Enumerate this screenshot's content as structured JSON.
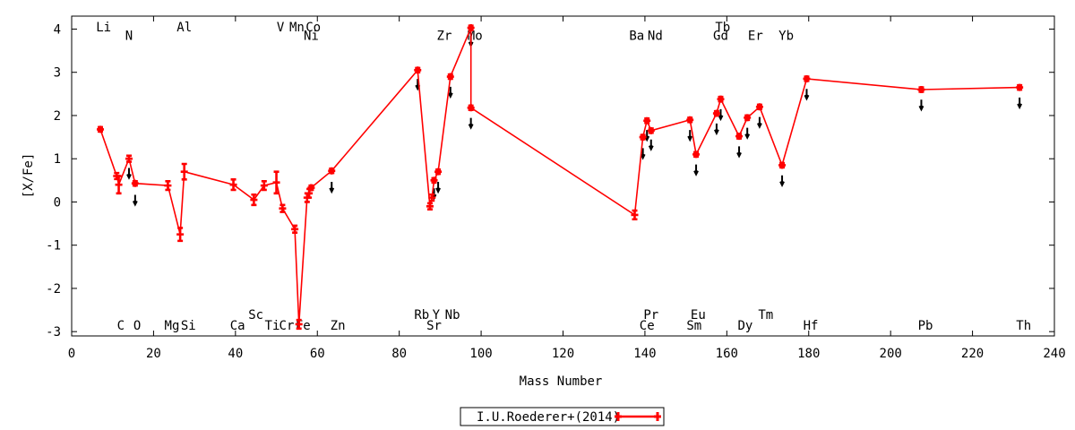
{
  "chart_data": {
    "type": "line",
    "xlabel": "Mass Number",
    "ylabel": "[X/Fe]",
    "xlim": [
      0,
      240
    ],
    "ylim": [
      -3.1,
      4.3
    ],
    "xticks": [
      0,
      20,
      40,
      60,
      80,
      100,
      120,
      140,
      160,
      180,
      200,
      220,
      240
    ],
    "yticks": [
      -3,
      -2,
      -1,
      0,
      1,
      2,
      3,
      4
    ],
    "grid": false,
    "legend_position": "bottom-center",
    "series": [
      {
        "name": "I.U.Roederer+(2014)",
        "color": "#ff0000",
        "points": [
          {
            "x": 7,
            "y": 1.68,
            "err": 0.05
          },
          {
            "x": 11,
            "y": 0.6,
            "err": 0.07
          },
          {
            "x": 11.5,
            "y": 0.4,
            "err": 0.2
          },
          {
            "x": 14,
            "y": 1.0,
            "err": 0.07
          },
          {
            "x": 15.5,
            "y": 0.43,
            "err": 0.05
          },
          {
            "x": 23.5,
            "y": 0.38,
            "err": 0.1
          },
          {
            "x": 26.5,
            "y": -0.75,
            "err": 0.15
          },
          {
            "x": 27.5,
            "y": 0.7,
            "err": 0.18
          },
          {
            "x": 39.5,
            "y": 0.4,
            "err": 0.12
          },
          {
            "x": 44.5,
            "y": 0.05,
            "err": 0.12
          },
          {
            "x": 47,
            "y": 0.38,
            "err": 0.1
          },
          {
            "x": 50,
            "y": 0.45,
            "err": 0.25
          },
          {
            "x": 51.5,
            "y": -0.15,
            "err": 0.08
          },
          {
            "x": 54.5,
            "y": -0.63,
            "err": 0.08
          },
          {
            "x": 55.5,
            "y": -2.83,
            "err": 0.1
          },
          {
            "x": 57.5,
            "y": 0.1,
            "err": 0.1
          },
          {
            "x": 58,
            "y": 0.2,
            "err": 0.1
          },
          {
            "x": 58.5,
            "y": 0.33,
            "err": 0.05
          },
          {
            "x": 63.5,
            "y": 0.72,
            "err": 0.05
          },
          {
            "x": 84.5,
            "y": 3.05,
            "err": 0.05
          },
          {
            "x": 87.5,
            "y": -0.1,
            "err": 0.07
          },
          {
            "x": 88,
            "y": 0.1,
            "err": 0.07
          },
          {
            "x": 88.5,
            "y": 0.5,
            "err": 0.05
          },
          {
            "x": 89.5,
            "y": 0.7,
            "err": 0.05
          },
          {
            "x": 92.5,
            "y": 2.9,
            "err": 0.05
          },
          {
            "x": 97.5,
            "y": 4.03,
            "err": 0.05
          },
          {
            "x": 97.5,
            "y": 2.18,
            "err": 0.05
          },
          {
            "x": 137.5,
            "y": -0.3,
            "err": 0.1
          },
          {
            "x": 139.5,
            "y": 1.5,
            "err": 0.05
          },
          {
            "x": 140.5,
            "y": 1.88,
            "err": 0.05
          },
          {
            "x": 141.5,
            "y": 1.65,
            "err": 0.05
          },
          {
            "x": 151,
            "y": 1.9,
            "err": 0.05
          },
          {
            "x": 152.5,
            "y": 1.1,
            "err": 0.05
          },
          {
            "x": 157.5,
            "y": 2.05,
            "err": 0.05
          },
          {
            "x": 158.5,
            "y": 2.38,
            "err": 0.05
          },
          {
            "x": 163,
            "y": 1.52,
            "err": 0.05
          },
          {
            "x": 165,
            "y": 1.95,
            "err": 0.05
          },
          {
            "x": 168,
            "y": 2.2,
            "err": 0.05
          },
          {
            "x": 173.5,
            "y": 0.85,
            "err": 0.05
          },
          {
            "x": 179.5,
            "y": 2.85,
            "err": 0.05
          },
          {
            "x": 207.5,
            "y": 2.6,
            "err": 0.05
          },
          {
            "x": 231.5,
            "y": 2.65,
            "err": 0.05
          }
        ]
      },
      {
        "color": "#000000",
        "points": [
          {
            "x": 14,
            "y": 0.62
          },
          {
            "x": 15.5,
            "y": 0.0
          },
          {
            "x": 63.5,
            "y": 0.3
          },
          {
            "x": 84.5,
            "y": 2.68
          },
          {
            "x": 88.5,
            "y": 0.15
          },
          {
            "x": 89.5,
            "y": 0.3
          },
          {
            "x": 92.5,
            "y": 2.5
          },
          {
            "x": 97.5,
            "y": 3.68
          },
          {
            "x": 97.5,
            "y": 1.78
          },
          {
            "x": 139.5,
            "y": 1.08
          },
          {
            "x": 140.5,
            "y": 1.5
          },
          {
            "x": 141.5,
            "y": 1.28
          },
          {
            "x": 151,
            "y": 1.5
          },
          {
            "x": 152.5,
            "y": 0.7
          },
          {
            "x": 157.5,
            "y": 1.65
          },
          {
            "x": 158.5,
            "y": 1.98
          },
          {
            "x": 163,
            "y": 1.12
          },
          {
            "x": 165,
            "y": 1.55
          },
          {
            "x": 168,
            "y": 1.8
          },
          {
            "x": 173.5,
            "y": 0.45
          },
          {
            "x": 179.5,
            "y": 2.45
          },
          {
            "x": 207.5,
            "y": 2.2
          },
          {
            "x": 231.5,
            "y": 2.25
          }
        ]
      }
    ],
    "element_labels": [
      {
        "text": "Li",
        "x": 7.8,
        "y": 4.05
      },
      {
        "text": "N",
        "x": 14,
        "y": 3.85
      },
      {
        "text": "Al",
        "x": 27.5,
        "y": 4.05
      },
      {
        "text": "V",
        "x": 51,
        "y": 4.05
      },
      {
        "text": "Mn",
        "x": 55,
        "y": 4.05
      },
      {
        "text": "Co",
        "x": 59,
        "y": 4.05
      },
      {
        "text": "Ni",
        "x": 58.5,
        "y": 3.85
      },
      {
        "text": "Zr",
        "x": 91,
        "y": 3.85
      },
      {
        "text": "Mo",
        "x": 98.5,
        "y": 3.85
      },
      {
        "text": "Ba",
        "x": 138,
        "y": 3.85
      },
      {
        "text": "Nd",
        "x": 142.5,
        "y": 3.85
      },
      {
        "text": "Tb",
        "x": 159,
        "y": 4.05
      },
      {
        "text": "Gd",
        "x": 158.5,
        "y": 3.85
      },
      {
        "text": "Er",
        "x": 167,
        "y": 3.85
      },
      {
        "text": "Yb",
        "x": 174.5,
        "y": 3.85
      },
      {
        "text": "Sc",
        "x": 45,
        "y": -2.6
      },
      {
        "text": "Rb",
        "x": 85.5,
        "y": -2.6
      },
      {
        "text": "Y",
        "x": 89,
        "y": -2.6
      },
      {
        "text": "Nb",
        "x": 93,
        "y": -2.6
      },
      {
        "text": "Pr",
        "x": 141.5,
        "y": -2.6
      },
      {
        "text": "Eu",
        "x": 153,
        "y": -2.6
      },
      {
        "text": "Tm",
        "x": 169.5,
        "y": -2.6
      },
      {
        "text": "C",
        "x": 12,
        "y": -2.85
      },
      {
        "text": "O",
        "x": 16,
        "y": -2.85
      },
      {
        "text": "Mg",
        "x": 24.5,
        "y": -2.85
      },
      {
        "text": "Si",
        "x": 28.5,
        "y": -2.85
      },
      {
        "text": "Ca",
        "x": 40.5,
        "y": -2.85
      },
      {
        "text": "Ti",
        "x": 49,
        "y": -2.85
      },
      {
        "text": "Cr",
        "x": 52.5,
        "y": -2.85
      },
      {
        "text": "Fe",
        "x": 56.5,
        "y": -2.85
      },
      {
        "text": "Zn",
        "x": 65,
        "y": -2.85
      },
      {
        "text": "Sr",
        "x": 88.5,
        "y": -2.85
      },
      {
        "text": "Ce",
        "x": 140.5,
        "y": -2.85
      },
      {
        "text": "Sm",
        "x": 152,
        "y": -2.85
      },
      {
        "text": "Dy",
        "x": 164.5,
        "y": -2.85
      },
      {
        "text": "Hf",
        "x": 180.5,
        "y": -2.85
      },
      {
        "text": "Pb",
        "x": 208.5,
        "y": -2.85
      },
      {
        "text": "Th",
        "x": 232.5,
        "y": -2.85
      }
    ]
  }
}
